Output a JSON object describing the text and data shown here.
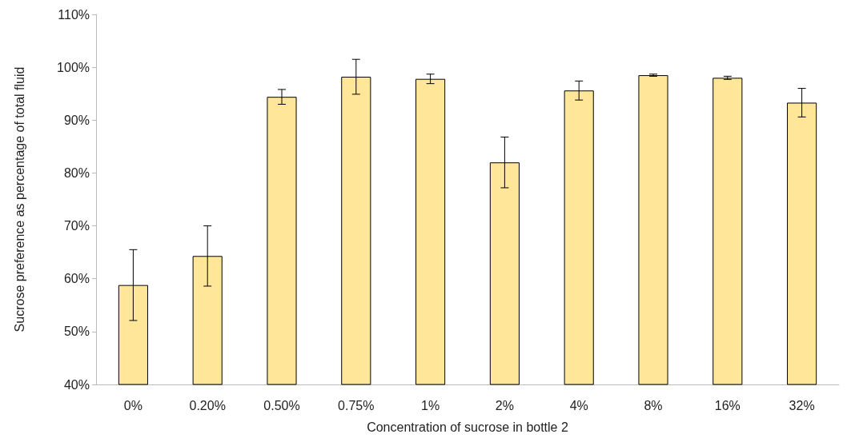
{
  "chart_data": {
    "type": "bar",
    "xlabel": "Concentration of sucrose in bottle 2",
    "ylabel": "Sucrose preference as percentage of total fluid",
    "categories": [
      "0%",
      "0.20%",
      "0.50%",
      "0.75%",
      "1%",
      "2%",
      "4%",
      "8%",
      "16%",
      "32%"
    ],
    "values": [
      58.8,
      64.3,
      94.4,
      98.2,
      97.8,
      82.0,
      95.6,
      98.5,
      98.0,
      93.3
    ],
    "errors": [
      6.7,
      5.7,
      1.4,
      3.3,
      0.9,
      4.8,
      1.8,
      0.2,
      0.3,
      2.7
    ],
    "color": "#ffe699",
    "ylim": [
      40,
      110
    ],
    "yticks": [
      {
        "value": 40,
        "label": "40%"
      },
      {
        "value": 50,
        "label": "50%"
      },
      {
        "value": 60,
        "label": "60%"
      },
      {
        "value": 70,
        "label": "70%"
      },
      {
        "value": 80,
        "label": "80%"
      },
      {
        "value": 90,
        "label": "90%"
      },
      {
        "value": 100,
        "label": "100%"
      },
      {
        "value": 110,
        "label": "110%"
      }
    ],
    "grid": false
  }
}
